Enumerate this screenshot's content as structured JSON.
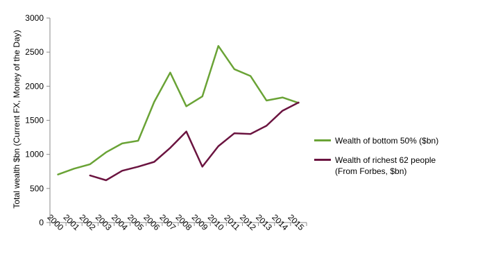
{
  "chart_data": {
    "type": "line",
    "categories": [
      "2000",
      "2001",
      "2002",
      "2003",
      "2004",
      "2005",
      "2006",
      "2007",
      "2008",
      "2009",
      "2010",
      "2011",
      "2012",
      "2013",
      "2014",
      "2015"
    ],
    "series": [
      {
        "name": "Wealth of bottom 50% ($bn)",
        "color": "#6aa336",
        "values": [
          705,
          790,
          855,
          1030,
          1160,
          1200,
          1770,
          2200,
          1705,
          1850,
          2590,
          2250,
          2150,
          1790,
          1835,
          1755
        ]
      },
      {
        "name": "Wealth of richest 62 people (From Forbes, $bn)",
        "color": "#6b1440",
        "values": [
          null,
          null,
          690,
          620,
          760,
          820,
          890,
          1095,
          1335,
          820,
          1120,
          1310,
          1300,
          1420,
          1640,
          1760
        ]
      }
    ],
    "ylabel": "Total wealth $bn (Current FX, Money of the Day)",
    "xlabel": "",
    "ylim": [
      0,
      3000
    ],
    "yticks": [
      0,
      500,
      1000,
      1500,
      2000,
      2500,
      3000
    ],
    "grid": false,
    "legend_position": "right"
  }
}
